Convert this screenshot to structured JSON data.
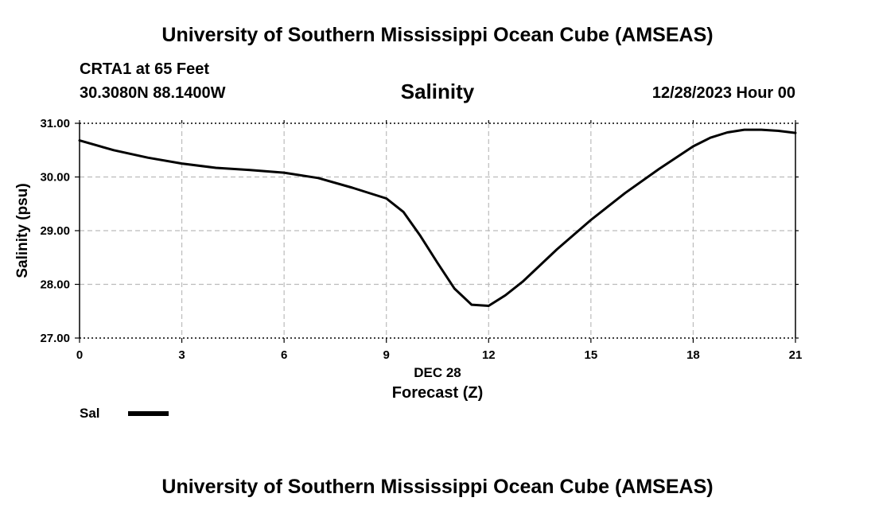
{
  "header": {
    "top_title": "University of Southern Mississippi Ocean Cube (AMSEAS)",
    "station": "CRTA1 at 65 Feet",
    "coords": "30.3080N  88.1400W",
    "variable": "Salinity",
    "datetime": "12/28/2023 Hour 00"
  },
  "footer": {
    "bottom_title": "University of Southern Mississippi Ocean Cube (AMSEAS)"
  },
  "colors": {
    "line": "#000000",
    "grid": "#bbbbbb",
    "axis": "#000000"
  },
  "chart_data": {
    "type": "line",
    "title": "Salinity",
    "xlabel": "Forecast (Z)",
    "xlabel_date": "DEC 28",
    "ylabel": "Salinity (psu)",
    "xlim": [
      0,
      21
    ],
    "ylim": [
      27,
      31
    ],
    "xticks": [
      0,
      3,
      6,
      9,
      12,
      15,
      18,
      21
    ],
    "yticks": [
      27,
      28,
      29,
      30,
      31
    ],
    "ytick_labels": [
      "27.00",
      "28.00",
      "29.00",
      "30.00",
      "31.00"
    ],
    "grid": true,
    "legend": {
      "label": "Sal",
      "position": "bottom-left"
    },
    "series": [
      {
        "name": "Sal",
        "x": [
          0,
          1,
          2,
          3,
          4,
          5,
          6,
          7,
          8,
          9,
          9.5,
          10,
          10.5,
          11,
          11.5,
          12,
          12.5,
          13,
          14,
          15,
          16,
          17,
          18,
          18.5,
          19,
          19.5,
          20,
          20.5,
          21
        ],
        "values": [
          30.68,
          30.5,
          30.36,
          30.25,
          30.17,
          30.13,
          30.08,
          29.98,
          29.8,
          29.6,
          29.35,
          28.9,
          28.4,
          27.92,
          27.62,
          27.6,
          27.8,
          28.05,
          28.65,
          29.2,
          29.7,
          30.15,
          30.57,
          30.73,
          30.83,
          30.88,
          30.88,
          30.86,
          30.82
        ]
      }
    ]
  }
}
